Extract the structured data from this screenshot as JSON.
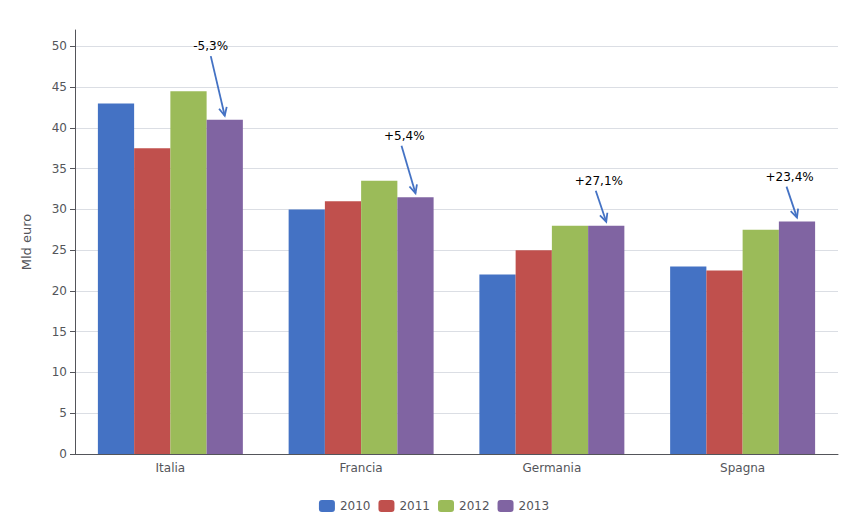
{
  "chart_data": {
    "type": "bar",
    "categories": [
      "Italia",
      "Francia",
      "Germania",
      "Spagna"
    ],
    "series": [
      {
        "name": "2010",
        "color": "#4472C4",
        "values": [
          43.0,
          30.0,
          22.0,
          23.0
        ]
      },
      {
        "name": "2011",
        "color": "#C0504D",
        "values": [
          37.5,
          31.0,
          25.0,
          22.5
        ]
      },
      {
        "name": "2012",
        "color": "#9BBB59",
        "values": [
          44.5,
          33.5,
          28.0,
          27.5
        ]
      },
      {
        "name": "2013",
        "color": "#8064A2",
        "values": [
          41.0,
          31.5,
          28.0,
          28.5
        ]
      }
    ],
    "ylabel": "Mld euro",
    "ylim": [
      0,
      52
    ],
    "yticks": [
      0,
      5,
      10,
      15,
      20,
      25,
      30,
      35,
      40,
      45,
      50
    ],
    "grid": true,
    "legend": "bottom",
    "annotations": [
      {
        "text": "-5,3%",
        "category": "Italia"
      },
      {
        "text": "+5,4%",
        "category": "Francia"
      },
      {
        "text": "+27,1%",
        "category": "Germania"
      },
      {
        "text": "+23,4%",
        "category": "Spagna"
      }
    ]
  }
}
